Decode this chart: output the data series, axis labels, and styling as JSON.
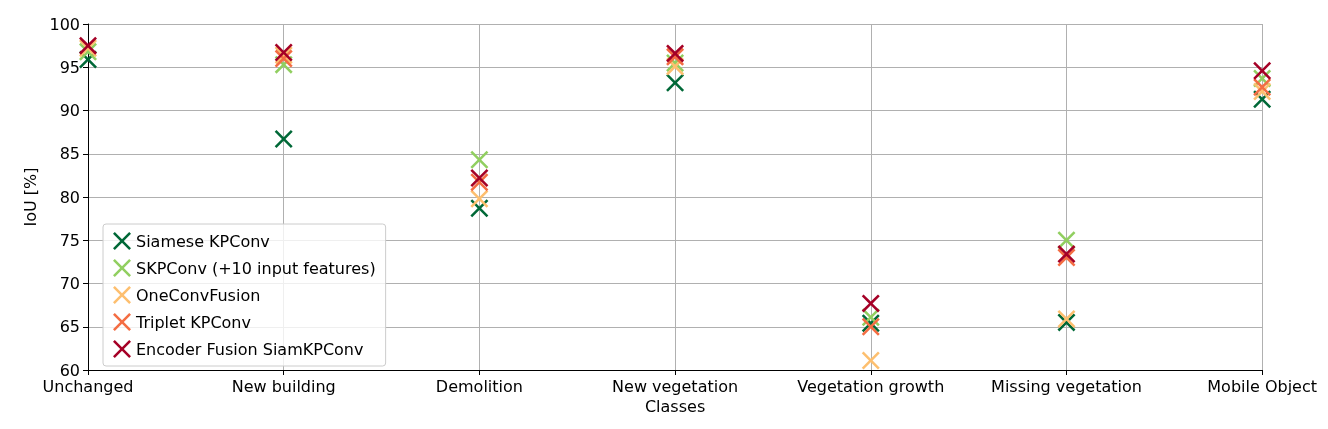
{
  "chart_data": {
    "type": "scatter",
    "xlabel": "Classes",
    "ylabel": "IoU [%]",
    "categories": [
      "Unchanged",
      "New building",
      "Demolition",
      "New vegetation",
      "Vegetation growth",
      "Missing vegetation",
      "Mobile Object"
    ],
    "series": [
      {
        "name": "Siamese KPConv",
        "color": "#006837",
        "values": [
          95.9,
          86.7,
          78.7,
          93.2,
          65.4,
          65.5,
          91.3
        ]
      },
      {
        "name": "SKPConv (+10 input features)",
        "color": "#91cf60",
        "values": [
          96.8,
          95.3,
          84.3,
          95.5,
          66.1,
          75.0,
          93.7
        ]
      },
      {
        "name": "OneConvFusion",
        "color": "#fdbf6f",
        "values": [
          97.2,
          96.4,
          79.8,
          95.1,
          61.1,
          65.9,
          92.2
        ]
      },
      {
        "name": "Triplet KPConv",
        "color": "#f46d43",
        "values": [
          null,
          96.0,
          81.7,
          96.2,
          65.0,
          73.0,
          92.7
        ]
      },
      {
        "name": "Encoder Fusion SiamKPConv",
        "color": "#a50026",
        "values": [
          97.5,
          96.7,
          82.2,
          96.6,
          67.7,
          73.4,
          94.6
        ]
      }
    ],
    "ylim": [
      60,
      100
    ],
    "yticks": [
      60,
      65,
      70,
      75,
      80,
      85,
      90,
      95,
      100
    ],
    "grid": true,
    "legend": "bottom left",
    "marker": "cross"
  }
}
